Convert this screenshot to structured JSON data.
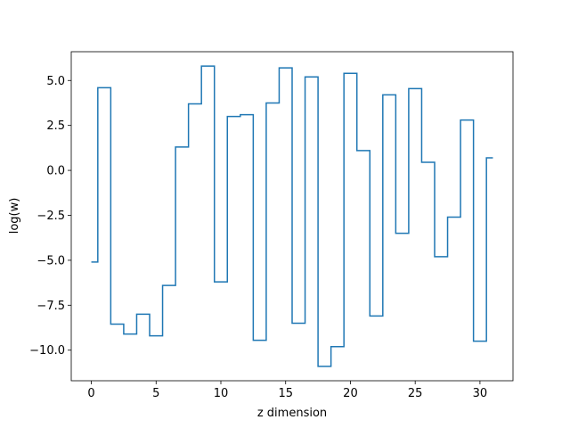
{
  "chart_data": {
    "type": "line",
    "drawstyle": "steps-mid",
    "xlabel": "z dimension",
    "ylabel": "log(w)",
    "x": [
      0,
      1,
      2,
      3,
      4,
      5,
      6,
      7,
      8,
      9,
      10,
      11,
      12,
      13,
      14,
      15,
      16,
      17,
      18,
      19,
      20,
      21,
      22,
      23,
      24,
      25,
      26,
      27,
      28,
      29,
      30,
      31
    ],
    "values": [
      -5.1,
      4.6,
      -8.55,
      -9.1,
      -8.0,
      -9.2,
      -6.4,
      1.3,
      3.7,
      5.8,
      -6.2,
      3.0,
      3.1,
      -9.45,
      3.75,
      5.7,
      -8.5,
      5.2,
      -10.9,
      -9.8,
      5.4,
      1.1,
      -8.1,
      4.2,
      -3.5,
      4.55,
      0.45,
      -4.8,
      -2.6,
      2.8,
      -9.5,
      0.7
    ],
    "xlim": [
      -1.55,
      32.55
    ],
    "ylim": [
      -11.7,
      6.6
    ],
    "xticks": [
      0,
      5,
      10,
      15,
      20,
      25,
      30
    ],
    "xtick_labels": [
      "0",
      "5",
      "10",
      "15",
      "20",
      "25",
      "30"
    ],
    "yticks": [
      -10.0,
      -7.5,
      -5.0,
      -2.5,
      0.0,
      2.5,
      5.0
    ],
    "ytick_labels": [
      "−10.0",
      "−7.5",
      "−5.0",
      "−2.5",
      "0.0",
      "2.5",
      "5.0"
    ],
    "grid": false,
    "line_color": "#1f77b4"
  }
}
